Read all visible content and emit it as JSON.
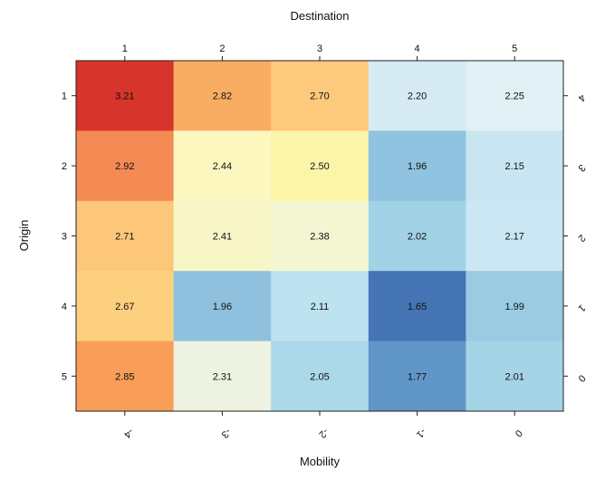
{
  "chart_data": {
    "type": "heatmap",
    "title": "",
    "top_axis_title": "Destination",
    "left_axis_title": "Origin",
    "bottom_axis_title": "Mobility",
    "columns": [
      "1",
      "2",
      "3",
      "4",
      "5"
    ],
    "rows": [
      "1",
      "2",
      "3",
      "4",
      "5"
    ],
    "bottom_tick_labels": [
      "-4",
      "-3",
      "-2",
      "-1",
      "0"
    ],
    "right_tick_labels": [
      "4",
      "3",
      "2",
      "1",
      "0"
    ],
    "values": [
      [
        3.21,
        2.82,
        2.7,
        2.2,
        2.25
      ],
      [
        2.92,
        2.44,
        2.5,
        1.96,
        2.15
      ],
      [
        2.71,
        2.41,
        2.38,
        2.02,
        2.17
      ],
      [
        2.67,
        1.96,
        2.11,
        1.65,
        1.99
      ],
      [
        2.85,
        2.31,
        2.05,
        1.77,
        2.01
      ]
    ],
    "colors": [
      [
        "#d7342c",
        "#f9ad62",
        "#fdc97c",
        "#d6ebf4",
        "#e1f0f4"
      ],
      [
        "#f48a54",
        "#fbf7be",
        "#faf5a8",
        "#90c3df",
        "#c9e5f1"
      ],
      [
        "#fdc77b",
        "#f8f6c6",
        "#f3f6d2",
        "#a2d2e6",
        "#cbe7f3"
      ],
      [
        "#fdd07f",
        "#8fc1df",
        "#bde2f0",
        "#4575b5",
        "#9acbe2"
      ],
      [
        "#f89e59",
        "#edf3e0",
        "#acd8e9",
        "#6096c8",
        "#a6d4e7"
      ]
    ],
    "colormap": "RdYlBu (reversed)",
    "legend": "none"
  }
}
